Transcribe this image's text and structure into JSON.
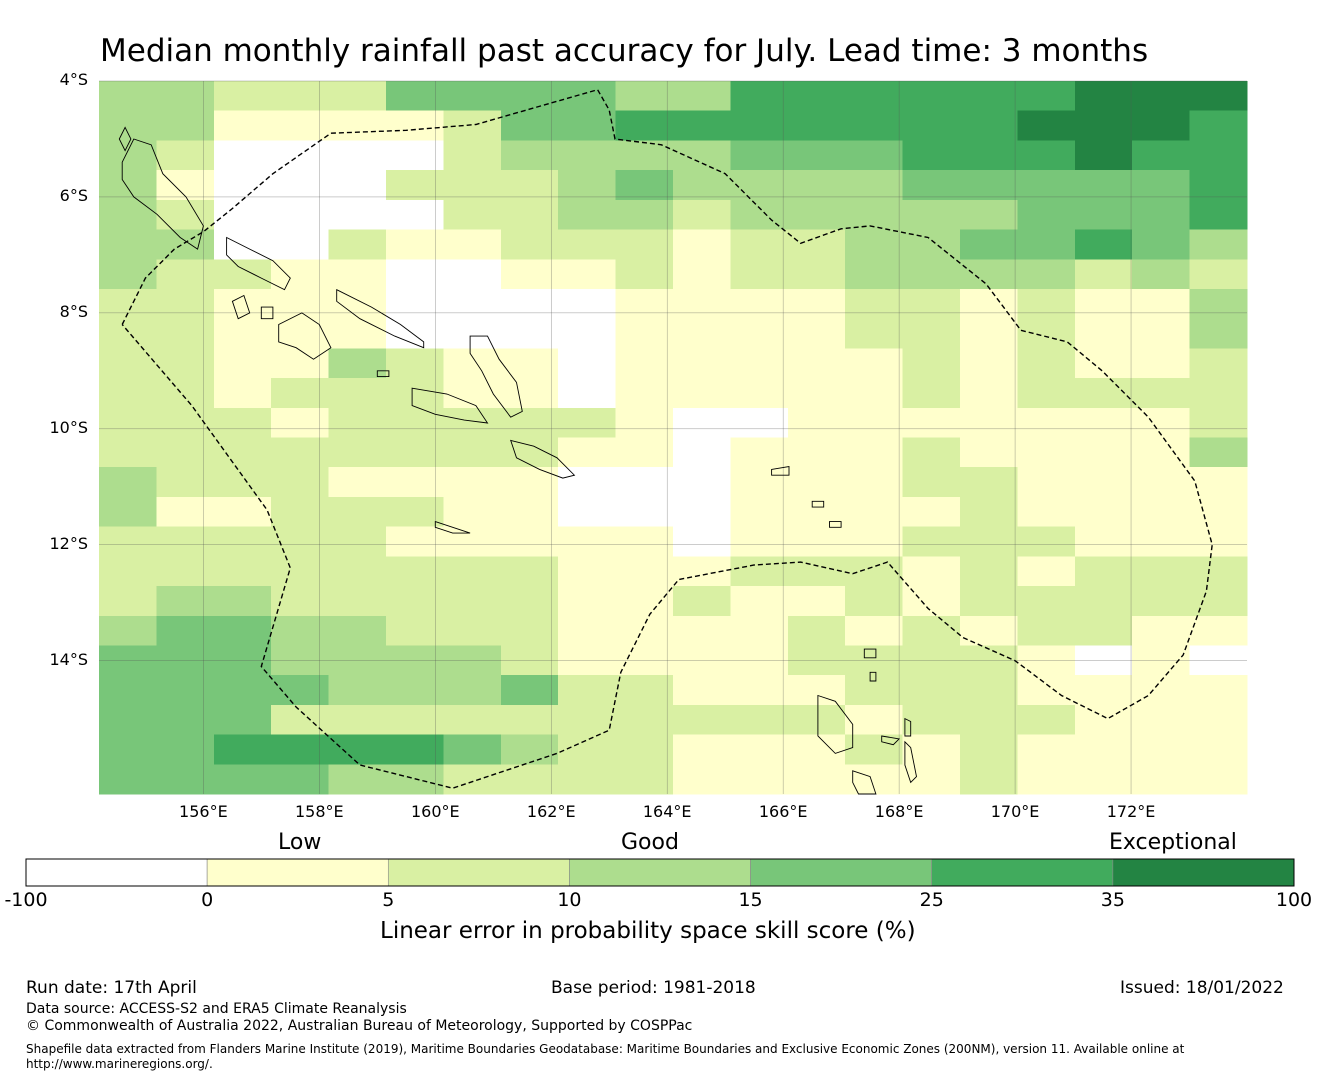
{
  "title": "Median monthly rainfall past accuracy for July. Lead time: 3 months",
  "map": {
    "extent": {
      "lon_min": 154.2,
      "lon_max": 174.0,
      "lat_min": -16.3,
      "lat_max": -4.0
    },
    "cell_size_deg": 0.8333,
    "lat_labels": [
      {
        "lat": -4,
        "label": "4°S"
      },
      {
        "lat": -6,
        "label": "6°S"
      },
      {
        "lat": -8,
        "label": "8°S"
      },
      {
        "lat": -10,
        "label": "10°S"
      },
      {
        "lat": -12,
        "label": "12°S"
      },
      {
        "lat": -14,
        "label": "14°S"
      }
    ],
    "lon_labels": [
      {
        "lon": 156,
        "label": "156°E"
      },
      {
        "lon": 158,
        "label": "158°E"
      },
      {
        "lon": 160,
        "label": "160°E"
      },
      {
        "lon": 162,
        "label": "162°E"
      },
      {
        "lon": 164,
        "label": "164°E"
      },
      {
        "lon": 166,
        "label": "166°E"
      },
      {
        "lon": 168,
        "label": "168°E"
      },
      {
        "lon": 170,
        "label": "170°E"
      },
      {
        "lon": 172,
        "label": "172°E"
      }
    ],
    "category_colors": [
      "#ffffff",
      "#ffffcc",
      "#d9f0a3",
      "#addd8e",
      "#78c679",
      "#41ab5d",
      "#238443"
    ],
    "grid": [
      "33222444433555555666",
      "33111124455555556665",
      "32000023333444555655",
      "31000222343333444445",
      "32000022332333334445",
      "33002112221223344543",
      "32211001121223333232",
      "22111000011112212113",
      "22111000011112212113",
      "22113211011111212112",
      "22122211011111212222",
      "22212222210011111112",
      "22222222110111211113",
      "32221111000111221111",
      "31122211000111121111",
      "22222111110111222111",
      "22222222111222121222",
      "23322222112112122222",
      "34433222111121212211",
      "44433332111122221010",
      "44443334221112221111",
      "44422222222221222111",
      "44555543221112121111",
      "44443322221111121111"
    ],
    "eez_boundary": [
      [
        154.6,
        -8.2
      ],
      [
        155.0,
        -7.4
      ],
      [
        155.5,
        -6.9
      ],
      [
        156.0,
        -6.6
      ],
      [
        156.5,
        -6.2
      ],
      [
        157.2,
        -5.6
      ],
      [
        158.2,
        -4.9
      ],
      [
        159.5,
        -4.85
      ],
      [
        160.7,
        -4.75
      ],
      [
        162.8,
        -4.15
      ],
      [
        163.0,
        -4.5
      ],
      [
        163.1,
        -5.0
      ],
      [
        163.9,
        -5.1
      ],
      [
        165.0,
        -5.6
      ],
      [
        165.8,
        -6.4
      ],
      [
        166.3,
        -6.8
      ],
      [
        167.0,
        -6.55
      ],
      [
        167.5,
        -6.5
      ],
      [
        168.5,
        -6.7
      ],
      [
        169.5,
        -7.5
      ],
      [
        170.1,
        -8.3
      ],
      [
        170.9,
        -8.5
      ],
      [
        171.5,
        -9.0
      ],
      [
        172.3,
        -9.8
      ],
      [
        173.1,
        -10.9
      ],
      [
        173.4,
        -12.0
      ],
      [
        173.3,
        -12.8
      ],
      [
        172.9,
        -13.9
      ],
      [
        172.3,
        -14.6
      ],
      [
        171.6,
        -15.0
      ],
      [
        170.8,
        -14.6
      ],
      [
        170.0,
        -14.0
      ],
      [
        169.1,
        -13.6
      ],
      [
        168.5,
        -13.1
      ],
      [
        167.8,
        -12.3
      ],
      [
        167.2,
        -12.5
      ],
      [
        166.3,
        -12.3
      ],
      [
        165.5,
        -12.35
      ],
      [
        164.2,
        -12.6
      ],
      [
        163.7,
        -13.2
      ],
      [
        163.2,
        -14.2
      ],
      [
        163.0,
        -15.2
      ],
      [
        162.1,
        -15.6
      ],
      [
        160.3,
        -16.2
      ],
      [
        158.7,
        -15.8
      ],
      [
        157.6,
        -14.8
      ],
      [
        157.0,
        -14.1
      ],
      [
        157.5,
        -12.4
      ],
      [
        157.1,
        -11.4
      ],
      [
        155.8,
        -9.6
      ],
      [
        154.6,
        -8.2
      ]
    ],
    "islands": [
      {
        "name": "bougainville",
        "pts": [
          [
            154.6,
            -5.4
          ],
          [
            154.8,
            -5.0
          ],
          [
            155.1,
            -5.1
          ],
          [
            155.3,
            -5.6
          ],
          [
            155.7,
            -6.0
          ],
          [
            156.0,
            -6.5
          ],
          [
            155.9,
            -6.9
          ],
          [
            155.6,
            -6.7
          ],
          [
            155.2,
            -6.3
          ],
          [
            154.8,
            -6.0
          ],
          [
            154.6,
            -5.7
          ]
        ]
      },
      {
        "name": "buka",
        "pts": [
          [
            154.55,
            -5.0
          ],
          [
            154.65,
            -4.8
          ],
          [
            154.75,
            -5.0
          ],
          [
            154.65,
            -5.2
          ]
        ]
      },
      {
        "name": "choiseul",
        "pts": [
          [
            156.4,
            -6.7
          ],
          [
            156.8,
            -6.9
          ],
          [
            157.2,
            -7.1
          ],
          [
            157.5,
            -7.4
          ],
          [
            157.4,
            -7.6
          ],
          [
            157.0,
            -7.4
          ],
          [
            156.6,
            -7.2
          ],
          [
            156.4,
            -7.0
          ]
        ]
      },
      {
        "name": "santa-isabel",
        "pts": [
          [
            158.3,
            -7.6
          ],
          [
            158.9,
            -7.9
          ],
          [
            159.4,
            -8.2
          ],
          [
            159.8,
            -8.5
          ],
          [
            159.8,
            -8.6
          ],
          [
            159.3,
            -8.4
          ],
          [
            158.7,
            -8.1
          ],
          [
            158.3,
            -7.8
          ]
        ]
      },
      {
        "name": "new-georgia",
        "pts": [
          [
            157.3,
            -8.2
          ],
          [
            157.7,
            -8.0
          ],
          [
            158.0,
            -8.2
          ],
          [
            158.2,
            -8.6
          ],
          [
            157.9,
            -8.8
          ],
          [
            157.6,
            -8.6
          ],
          [
            157.3,
            -8.5
          ]
        ]
      },
      {
        "name": "vella-lavella",
        "pts": [
          [
            156.5,
            -7.8
          ],
          [
            156.7,
            -7.7
          ],
          [
            156.8,
            -8.0
          ],
          [
            156.6,
            -8.1
          ]
        ]
      },
      {
        "name": "kolombangara",
        "pts": [
          [
            157.0,
            -7.9
          ],
          [
            157.2,
            -7.9
          ],
          [
            157.2,
            -8.1
          ],
          [
            157.0,
            -8.1
          ]
        ]
      },
      {
        "name": "russell",
        "pts": [
          [
            159.0,
            -9.0
          ],
          [
            159.2,
            -9.0
          ],
          [
            159.2,
            -9.1
          ],
          [
            159.0,
            -9.1
          ]
        ]
      },
      {
        "name": "malaita",
        "pts": [
          [
            160.6,
            -8.4
          ],
          [
            160.9,
            -8.4
          ],
          [
            161.1,
            -8.8
          ],
          [
            161.4,
            -9.2
          ],
          [
            161.5,
            -9.7
          ],
          [
            161.3,
            -9.8
          ],
          [
            161.0,
            -9.4
          ],
          [
            160.8,
            -9.0
          ],
          [
            160.6,
            -8.7
          ]
        ]
      },
      {
        "name": "guadalcanal",
        "pts": [
          [
            159.6,
            -9.3
          ],
          [
            160.2,
            -9.4
          ],
          [
            160.7,
            -9.6
          ],
          [
            160.9,
            -9.9
          ],
          [
            160.5,
            -9.85
          ],
          [
            160.0,
            -9.75
          ],
          [
            159.6,
            -9.6
          ]
        ]
      },
      {
        "name": "makira",
        "pts": [
          [
            161.3,
            -10.2
          ],
          [
            161.7,
            -10.3
          ],
          [
            162.1,
            -10.5
          ],
          [
            162.4,
            -10.8
          ],
          [
            162.2,
            -10.85
          ],
          [
            161.8,
            -10.7
          ],
          [
            161.4,
            -10.5
          ]
        ]
      },
      {
        "name": "rennell",
        "pts": [
          [
            160.0,
            -11.6
          ],
          [
            160.3,
            -11.7
          ],
          [
            160.6,
            -11.8
          ],
          [
            160.3,
            -11.8
          ],
          [
            160.0,
            -11.7
          ]
        ]
      },
      {
        "name": "santa-cruz",
        "pts": [
          [
            165.8,
            -10.7
          ],
          [
            166.1,
            -10.65
          ],
          [
            166.1,
            -10.8
          ],
          [
            165.8,
            -10.8
          ]
        ]
      },
      {
        "name": "espiritu-santo",
        "pts": [
          [
            166.6,
            -14.6
          ],
          [
            166.9,
            -14.7
          ],
          [
            167.2,
            -15.1
          ],
          [
            167.2,
            -15.5
          ],
          [
            166.9,
            -15.6
          ],
          [
            166.6,
            -15.3
          ],
          [
            166.6,
            -14.9
          ]
        ]
      },
      {
        "name": "malakula",
        "pts": [
          [
            167.2,
            -15.9
          ],
          [
            167.5,
            -16.0
          ],
          [
            167.6,
            -16.3
          ],
          [
            167.3,
            -16.3
          ],
          [
            167.2,
            -16.1
          ]
        ]
      },
      {
        "name": "pentecost",
        "pts": [
          [
            168.1,
            -15.4
          ],
          [
            168.2,
            -15.5
          ],
          [
            168.3,
            -16.0
          ],
          [
            168.2,
            -16.1
          ],
          [
            168.1,
            -15.8
          ]
        ]
      },
      {
        "name": "maewo",
        "pts": [
          [
            168.1,
            -15.0
          ],
          [
            168.2,
            -15.05
          ],
          [
            168.2,
            -15.3
          ],
          [
            168.1,
            -15.3
          ]
        ]
      },
      {
        "name": "ambae",
        "pts": [
          [
            167.7,
            -15.3
          ],
          [
            168.0,
            -15.35
          ],
          [
            167.9,
            -15.45
          ],
          [
            167.7,
            -15.4
          ]
        ]
      },
      {
        "name": "gaua",
        "pts": [
          [
            167.5,
            -14.2
          ],
          [
            167.6,
            -14.2
          ],
          [
            167.6,
            -14.35
          ],
          [
            167.5,
            -14.35
          ]
        ]
      },
      {
        "name": "vanua-lava",
        "pts": [
          [
            167.4,
            -13.8
          ],
          [
            167.6,
            -13.8
          ],
          [
            167.6,
            -13.95
          ],
          [
            167.4,
            -13.95
          ]
        ]
      },
      {
        "name": "utupua",
        "pts": [
          [
            166.5,
            -11.25
          ],
          [
            166.7,
            -11.25
          ],
          [
            166.7,
            -11.35
          ],
          [
            166.5,
            -11.35
          ]
        ]
      },
      {
        "name": "vanikoro",
        "pts": [
          [
            166.8,
            -11.6
          ],
          [
            167.0,
            -11.6
          ],
          [
            167.0,
            -11.7
          ],
          [
            166.8,
            -11.7
          ]
        ]
      }
    ]
  },
  "colorbar": {
    "categories": [
      {
        "label": "Low"
      },
      {
        "label": "Good"
      },
      {
        "label": "Exceptional"
      }
    ],
    "ticks": [
      "-100",
      "0",
      "5",
      "10",
      "15",
      "25",
      "35",
      "100"
    ],
    "colors": [
      "#ffffff",
      "#ffffcc",
      "#d9f0a3",
      "#addd8e",
      "#78c679",
      "#41ab5d",
      "#238443"
    ],
    "title": "Linear error in probability space skill score (%)"
  },
  "footer": {
    "run_date": "Run date: 17th April",
    "base_period": "Base period: 1981-2018",
    "issued": "Issued: 18/01/2022",
    "data_source": "Data source: ACCESS-S2 and ERA5 Climate Reanalysis",
    "copyright": "© Commonwealth of Australia 2022, Australian Bureau of Meteorology, Supported by COSPPac",
    "shapefile_line1": "Shapefile data extracted from Flanders Marine Institute (2019), Maritime Boundaries Geodatabase: Maritime Boundaries and Exclusive Economic Zones (200NM), version 11. Available online at",
    "shapefile_line2": "http://www.marineregions.org/."
  }
}
